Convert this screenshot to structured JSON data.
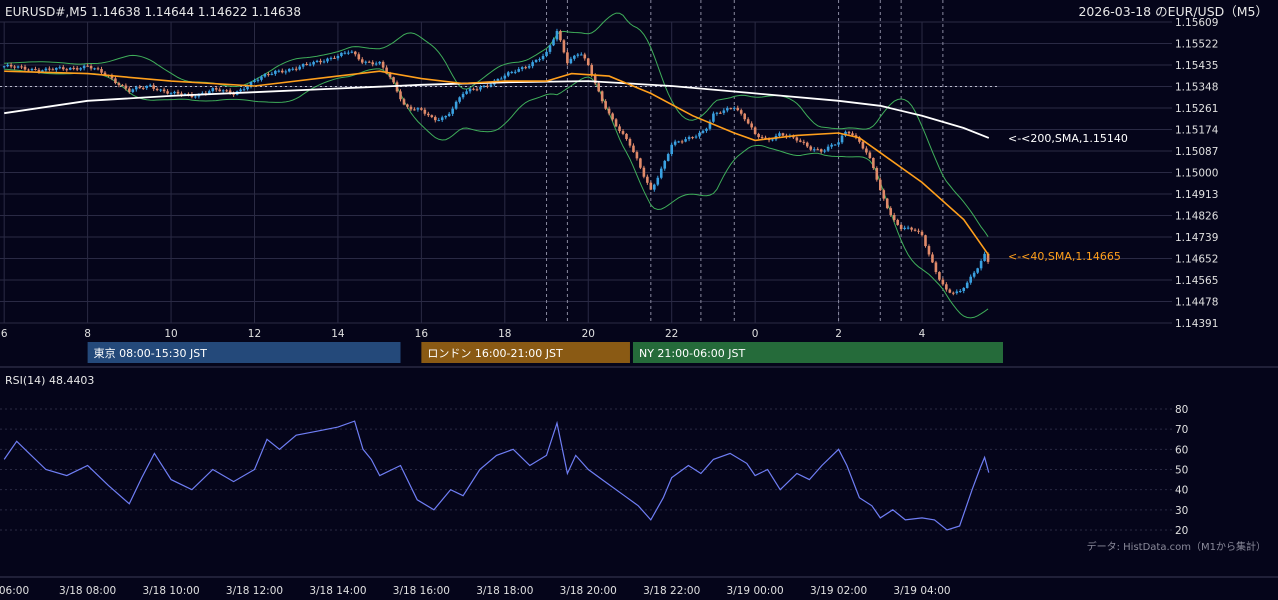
{
  "header": {
    "symbol_line": "EURUSD#,M5 1.14638 1.14644 1.14622 1.14638",
    "date_title": "2026-03-18 のEUR/USD（M5）"
  },
  "colors": {
    "background": "#05051a",
    "grid": "#2a2a44",
    "bull": "#3aa0e0",
    "bear": "#e08a6a",
    "sma40": "#ff9f1c",
    "sma200": "#ffffff",
    "bands": "#3fae5a",
    "rsi": "#6f7ef5",
    "tokyo": "#24497a",
    "london": "#8a5a14",
    "ny": "#256b3a"
  },
  "chart_data": [
    {
      "type": "candlestick",
      "symbol": "EURUSD#",
      "timeframe": "M5",
      "ohlc_last": {
        "open": 1.14638,
        "high": 1.14644,
        "low": 1.14622,
        "close": 1.14638
      },
      "y_ticks": [
        "1.15609",
        "1.15522",
        "1.15435",
        "1.15348",
        "1.15261",
        "1.15174",
        "1.15087",
        "1.15000",
        "1.14913",
        "1.14826",
        "1.14739",
        "1.14652",
        "1.14565",
        "1.14478",
        "1.14391"
      ],
      "ylim": [
        1.14391,
        1.15609
      ],
      "x_ticks": [
        "6",
        "8",
        "10",
        "12",
        "14",
        "16",
        "18",
        "20",
        "22",
        "0",
        "2",
        "4"
      ],
      "xlim_hours": [
        6,
        29.6
      ],
      "reference_line": 1.15348,
      "session_marker_hours": [
        19,
        19.5,
        21.5,
        22.7,
        23.5,
        26,
        27,
        27.5,
        28.5
      ],
      "close_points": [
        [
          6.0,
          1.1543
        ],
        [
          6.5,
          1.1542
        ],
        [
          7.0,
          1.15415
        ],
        [
          7.5,
          1.1542
        ],
        [
          8.0,
          1.1543
        ],
        [
          8.5,
          1.1539
        ],
        [
          9.0,
          1.1533
        ],
        [
          9.5,
          1.1535
        ],
        [
          10.0,
          1.1532
        ],
        [
          10.5,
          1.1531
        ],
        [
          11.0,
          1.15335
        ],
        [
          11.5,
          1.1532
        ],
        [
          12.0,
          1.1537
        ],
        [
          12.5,
          1.1541
        ],
        [
          13.0,
          1.1542
        ],
        [
          13.5,
          1.1545
        ],
        [
          14.0,
          1.1547
        ],
        [
          14.3,
          1.1549
        ],
        [
          14.6,
          1.1545
        ],
        [
          15.0,
          1.1544
        ],
        [
          15.3,
          1.1537
        ],
        [
          15.6,
          1.1527
        ],
        [
          16.0,
          1.1525
        ],
        [
          16.3,
          1.1521
        ],
        [
          16.6,
          1.1523
        ],
        [
          17.0,
          1.1532
        ],
        [
          17.5,
          1.1535
        ],
        [
          18.0,
          1.1539
        ],
        [
          18.5,
          1.1543
        ],
        [
          19.0,
          1.1548
        ],
        [
          19.25,
          1.1557
        ],
        [
          19.5,
          1.1545
        ],
        [
          19.8,
          1.1549
        ],
        [
          20.0,
          1.1543
        ],
        [
          20.3,
          1.153
        ],
        [
          20.6,
          1.1521
        ],
        [
          21.0,
          1.1511
        ],
        [
          21.3,
          1.15
        ],
        [
          21.5,
          1.1493
        ],
        [
          21.8,
          1.1503
        ],
        [
          22.0,
          1.1511
        ],
        [
          22.4,
          1.1514
        ],
        [
          22.8,
          1.1517
        ],
        [
          23.0,
          1.1523
        ],
        [
          23.5,
          1.1527
        ],
        [
          23.8,
          1.1521
        ],
        [
          24.0,
          1.1515
        ],
        [
          24.3,
          1.1513
        ],
        [
          24.6,
          1.1516
        ],
        [
          25.0,
          1.1513
        ],
        [
          25.3,
          1.151
        ],
        [
          25.6,
          1.1509
        ],
        [
          26.0,
          1.1512
        ],
        [
          26.2,
          1.1517
        ],
        [
          26.5,
          1.1513
        ],
        [
          26.8,
          1.1504
        ],
        [
          27.0,
          1.1492
        ],
        [
          27.3,
          1.1481
        ],
        [
          27.5,
          1.1478
        ],
        [
          27.8,
          1.1477
        ],
        [
          28.0,
          1.1474
        ],
        [
          28.3,
          1.1461
        ],
        [
          28.6,
          1.1452
        ],
        [
          28.9,
          1.1451
        ],
        [
          29.2,
          1.1458
        ],
        [
          29.5,
          1.1467
        ],
        [
          29.6,
          1.14638
        ]
      ]
    },
    {
      "type": "line",
      "name": "SMA",
      "label": "<-<40,SMA,1.14665",
      "period": 40,
      "last_value": 1.14665,
      "points": [
        [
          6.0,
          1.1541
        ],
        [
          8.0,
          1.154
        ],
        [
          10.0,
          1.1537
        ],
        [
          12.0,
          1.1535
        ],
        [
          14.0,
          1.1539
        ],
        [
          15.0,
          1.1541
        ],
        [
          16.0,
          1.1538
        ],
        [
          17.0,
          1.1536
        ],
        [
          18.0,
          1.1537
        ],
        [
          19.0,
          1.1537
        ],
        [
          19.6,
          1.154
        ],
        [
          20.5,
          1.1539
        ],
        [
          21.5,
          1.1532
        ],
        [
          22.5,
          1.1523
        ],
        [
          23.5,
          1.1516
        ],
        [
          24.0,
          1.1513
        ],
        [
          25.0,
          1.1515
        ],
        [
          26.0,
          1.1516
        ],
        [
          26.5,
          1.1514
        ],
        [
          27.0,
          1.1508
        ],
        [
          28.0,
          1.1496
        ],
        [
          29.0,
          1.1481
        ],
        [
          29.6,
          1.14665
        ]
      ]
    },
    {
      "type": "line",
      "name": "SMA",
      "label": "<-<200,SMA,1.15140",
      "period": 200,
      "last_value": 1.1514,
      "points": [
        [
          6.0,
          1.1524
        ],
        [
          8.0,
          1.1529
        ],
        [
          10.0,
          1.1531
        ],
        [
          12.0,
          1.15325
        ],
        [
          14.0,
          1.1534
        ],
        [
          16.0,
          1.15355
        ],
        [
          18.0,
          1.15365
        ],
        [
          20.0,
          1.1537
        ],
        [
          22.0,
          1.1535
        ],
        [
          24.0,
          1.1532
        ],
        [
          26.0,
          1.1529
        ],
        [
          27.0,
          1.1527
        ],
        [
          28.0,
          1.1523
        ],
        [
          29.0,
          1.1518
        ],
        [
          29.6,
          1.1514
        ]
      ]
    },
    {
      "type": "line",
      "name": "RSI(14)",
      "title": "RSI(14) 48.4403",
      "last_value": 48.4403,
      "y_ticks": [
        "80",
        "70",
        "60",
        "50",
        "40",
        "30",
        "20"
      ],
      "ylim": [
        15,
        85
      ],
      "x_ticks": [
        "06:00",
        "3/18 08:00",
        "3/18 10:00",
        "3/18 12:00",
        "3/18 14:00",
        "3/18 16:00",
        "3/18 18:00",
        "3/18 20:00",
        "3/18 22:00",
        "3/19 00:00",
        "3/19 02:00",
        "3/19 04:00"
      ],
      "points": [
        [
          6.0,
          55
        ],
        [
          6.3,
          64
        ],
        [
          6.6,
          58
        ],
        [
          7.0,
          50
        ],
        [
          7.5,
          47
        ],
        [
          8.0,
          52
        ],
        [
          8.5,
          42
        ],
        [
          9.0,
          33
        ],
        [
          9.3,
          46
        ],
        [
          9.6,
          58
        ],
        [
          10.0,
          45
        ],
        [
          10.5,
          40
        ],
        [
          11.0,
          50
        ],
        [
          11.5,
          44
        ],
        [
          12.0,
          50
        ],
        [
          12.3,
          65
        ],
        [
          12.6,
          60
        ],
        [
          13.0,
          67
        ],
        [
          13.5,
          69
        ],
        [
          14.0,
          71
        ],
        [
          14.4,
          74
        ],
        [
          14.6,
          60
        ],
        [
          14.8,
          55
        ],
        [
          15.0,
          47
        ],
        [
          15.5,
          52
        ],
        [
          15.9,
          35
        ],
        [
          16.3,
          30
        ],
        [
          16.7,
          40
        ],
        [
          17.0,
          37
        ],
        [
          17.4,
          50
        ],
        [
          17.8,
          57
        ],
        [
          18.2,
          60
        ],
        [
          18.6,
          52
        ],
        [
          19.0,
          57
        ],
        [
          19.25,
          73
        ],
        [
          19.5,
          48
        ],
        [
          19.7,
          57
        ],
        [
          20.0,
          50
        ],
        [
          20.4,
          44
        ],
        [
          20.8,
          38
        ],
        [
          21.2,
          32
        ],
        [
          21.5,
          25
        ],
        [
          21.8,
          36
        ],
        [
          22.0,
          46
        ],
        [
          22.4,
          52
        ],
        [
          22.7,
          48
        ],
        [
          23.0,
          55
        ],
        [
          23.4,
          58
        ],
        [
          23.8,
          53
        ],
        [
          24.0,
          47
        ],
        [
          24.3,
          50
        ],
        [
          24.6,
          40
        ],
        [
          25.0,
          48
        ],
        [
          25.3,
          45
        ],
        [
          25.6,
          52
        ],
        [
          26.0,
          60
        ],
        [
          26.2,
          52
        ],
        [
          26.5,
          36
        ],
        [
          26.8,
          32
        ],
        [
          27.0,
          26
        ],
        [
          27.3,
          30
        ],
        [
          27.6,
          25
        ],
        [
          28.0,
          26
        ],
        [
          28.3,
          25
        ],
        [
          28.6,
          20
        ],
        [
          28.9,
          22
        ],
        [
          29.2,
          40
        ],
        [
          29.4,
          51
        ],
        [
          29.5,
          56
        ],
        [
          29.6,
          48.4403
        ]
      ]
    }
  ],
  "annotations": {
    "sessions": [
      {
        "label": "東京 08:00-15:30 JST",
        "start": 8,
        "end": 15.5
      },
      {
        "label": "ロンドン 16:00-21:00 JST",
        "start": 16,
        "end": 21
      },
      {
        "label": "NY 21:00-06:00 JST",
        "start": 21,
        "end": 30
      }
    ],
    "source": "データ: HistData.com（M1から集計）"
  }
}
